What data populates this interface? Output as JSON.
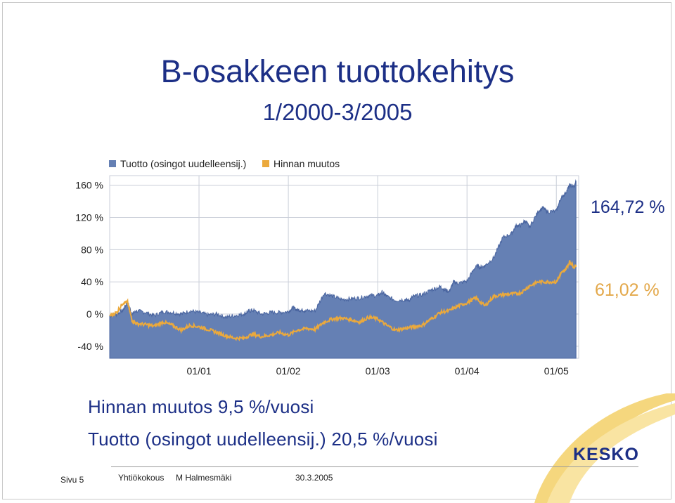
{
  "slide": {
    "title": "B-osakkeen tuottokehitys",
    "subtitle": "1/2000-3/2005",
    "stat_price": "Hinnan muutos 9,5 %/vuosi",
    "stat_total": "Tuotto (osingot uudelleensij.) 20,5 %/vuosi",
    "callout_total": "164,72 %",
    "callout_price": "61,02 %",
    "footer": {
      "page": "Sivu 5",
      "event": "Yhtiökokous",
      "author": "M Halmesmäki",
      "date": "30.3.2005"
    },
    "logo": "KESKO"
  },
  "colors": {
    "title": "#1c2f86",
    "total_fill": "#6580b4",
    "total_line": "#4a65a0",
    "price_line": "#eba93c",
    "grid": "#c9ced8"
  },
  "chart_data": {
    "type": "area",
    "legend": [
      "Tuotto (osingot uudelleensij.)",
      "Hinnan muutos"
    ],
    "legend_position": "top-left",
    "x_ticks": [
      "01/01",
      "01/02",
      "01/03",
      "01/04",
      "01/05"
    ],
    "x_tick_dates": [
      2001.0,
      2002.0,
      2003.0,
      2004.0,
      2005.0
    ],
    "xlim": [
      2000.0,
      2005.25
    ],
    "y_ticks": [
      "160 %",
      "120 %",
      "80 %",
      "40 %",
      "0 %",
      "-40 %"
    ],
    "y_tick_values": [
      160,
      120,
      80,
      40,
      0,
      -40
    ],
    "ylim": [
      -55,
      172
    ],
    "grid": true,
    "series": [
      {
        "name": "Tuotto (osingot uudelleensij.)",
        "style": "area",
        "x": [
          2000.0,
          2000.08,
          2000.15,
          2000.2,
          2000.25,
          2000.3,
          2000.4,
          2000.5,
          2000.6,
          2000.7,
          2000.8,
          2000.9,
          2001.0,
          2001.1,
          2001.2,
          2001.3,
          2001.4,
          2001.5,
          2001.55,
          2001.6,
          2001.7,
          2001.8,
          2001.9,
          2002.0,
          2002.05,
          2002.1,
          2002.15,
          2002.2,
          2002.3,
          2002.4,
          2002.5,
          2002.6,
          2002.7,
          2002.8,
          2002.9,
          2003.0,
          2003.05,
          2003.1,
          2003.2,
          2003.3,
          2003.35,
          2003.4,
          2003.5,
          2003.6,
          2003.7,
          2003.75,
          2003.8,
          2003.85,
          2003.9,
          2004.0,
          2004.1,
          2004.15,
          2004.2,
          2004.3,
          2004.4,
          2004.5,
          2004.55,
          2004.6,
          2004.65,
          2004.7,
          2004.8,
          2004.85,
          2004.9,
          2005.0,
          2005.05,
          2005.1,
          2005.15,
          2005.2,
          2005.22
        ],
        "values": [
          -2,
          0,
          5,
          15,
          0,
          4,
          2,
          -2,
          3,
          2,
          0,
          4,
          2,
          -1,
          0,
          -4,
          -2,
          0,
          3,
          5,
          0,
          2,
          2,
          3,
          8,
          5,
          5,
          4,
          4,
          26,
          22,
          18,
          19,
          20,
          23,
          23,
          27,
          22,
          17,
          18,
          17,
          22,
          24,
          30,
          34,
          30,
          28,
          40,
          38,
          41,
          60,
          58,
          60,
          70,
          95,
          100,
          110,
          110,
          116,
          108,
          128,
          132,
          127,
          128,
          144,
          150,
          160,
          158,
          164.72
        ]
      },
      {
        "name": "Hinnan muutos",
        "style": "line",
        "x": [
          2000.0,
          2000.08,
          2000.15,
          2000.2,
          2000.25,
          2000.3,
          2000.4,
          2000.5,
          2000.6,
          2000.7,
          2000.8,
          2000.9,
          2001.0,
          2001.1,
          2001.2,
          2001.3,
          2001.4,
          2001.5,
          2001.6,
          2001.7,
          2001.8,
          2001.9,
          2002.0,
          2002.1,
          2002.2,
          2002.3,
          2002.4,
          2002.5,
          2002.6,
          2002.7,
          2002.8,
          2002.9,
          2003.0,
          2003.1,
          2003.2,
          2003.3,
          2003.4,
          2003.5,
          2003.6,
          2003.7,
          2003.8,
          2003.9,
          2004.0,
          2004.1,
          2004.2,
          2004.3,
          2004.4,
          2004.5,
          2004.6,
          2004.7,
          2004.8,
          2004.9,
          2005.0,
          2005.05,
          2005.1,
          2005.15,
          2005.2,
          2005.22
        ],
        "values": [
          -2,
          2,
          14,
          15,
          -8,
          -12,
          -13,
          -15,
          -10,
          -14,
          -20,
          -14,
          -16,
          -19,
          -23,
          -27,
          -30,
          -30,
          -25,
          -28,
          -26,
          -23,
          -26,
          -20,
          -18,
          -19,
          -10,
          -6,
          -5,
          -7,
          -10,
          -4,
          -6,
          -14,
          -20,
          -18,
          -16,
          -14,
          -6,
          2,
          4,
          10,
          14,
          20,
          10,
          22,
          24,
          25,
          26,
          35,
          40,
          40,
          40,
          50,
          55,
          65,
          58,
          61.02
        ]
      }
    ]
  }
}
